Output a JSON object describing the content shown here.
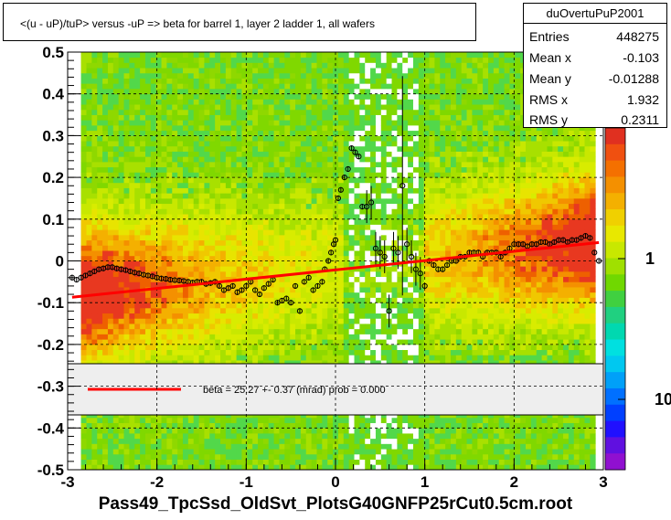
{
  "title": "<(u - uP)/tuP> versus  -uP => beta for barrel 1, layer 2 ladder 1, all wafers",
  "stats": {
    "name": "duOvertuPuP2001",
    "rows": [
      {
        "k": "Entries",
        "v": "448275"
      },
      {
        "k": "Mean x",
        "v": "-0.103"
      },
      {
        "k": "Mean y",
        "v": "-0.01288"
      },
      {
        "k": "RMS x",
        "v": "1.932"
      },
      {
        "k": "RMS y",
        "v": "0.2311"
      }
    ]
  },
  "footer": "Pass49_TpcSsd_OldSvt_PlotsG40GNFP25rCut0.5cm.root",
  "colors": {
    "fit_line": "#ff0000",
    "legend_bg": "#eeeeee"
  },
  "chart_data": {
    "type": "heatmap",
    "xlim": [
      -3,
      3
    ],
    "ylim": [
      -0.5,
      0.5
    ],
    "x_ticks": [
      "-3",
      "-2",
      "-1",
      "0",
      "1",
      "2",
      "3"
    ],
    "y_ticks": [
      "-0.5",
      "-0.4",
      "-0.3",
      "-0.2",
      "-0.1",
      "0",
      "0.1",
      "0.2",
      "0.3",
      "0.4",
      "0.5"
    ],
    "z_ticks": [
      "10",
      "1"
    ],
    "grid": true,
    "fit": {
      "label": "beta =   25.27 +-  0.37 (mrad) prob = 0.000",
      "x": [
        -2.95,
        2.95
      ],
      "y": [
        -0.087,
        0.044
      ]
    },
    "profile": [
      [
        -2.95,
        -0.04
      ],
      [
        -2.9,
        -0.045
      ],
      [
        -2.85,
        -0.04
      ],
      [
        -2.8,
        -0.035
      ],
      [
        -2.75,
        -0.03
      ],
      [
        -2.7,
        -0.025
      ],
      [
        -2.65,
        -0.02
      ],
      [
        -2.6,
        -0.018
      ],
      [
        -2.55,
        -0.015
      ],
      [
        -2.5,
        -0.015
      ],
      [
        -2.45,
        -0.018
      ],
      [
        -2.4,
        -0.02
      ],
      [
        -2.35,
        -0.022
      ],
      [
        -2.3,
        -0.025
      ],
      [
        -2.25,
        -0.028
      ],
      [
        -2.2,
        -0.03
      ],
      [
        -2.15,
        -0.033
      ],
      [
        -2.1,
        -0.035
      ],
      [
        -2.05,
        -0.037
      ],
      [
        -2.0,
        -0.04
      ],
      [
        -1.95,
        -0.042
      ],
      [
        -1.9,
        -0.043
      ],
      [
        -1.85,
        -0.045
      ],
      [
        -1.8,
        -0.046
      ],
      [
        -1.75,
        -0.047
      ],
      [
        -1.7,
        -0.048
      ],
      [
        -1.65,
        -0.05
      ],
      [
        -1.6,
        -0.052
      ],
      [
        -1.55,
        -0.05
      ],
      [
        -1.5,
        -0.05
      ],
      [
        -1.45,
        -0.055
      ],
      [
        -1.4,
        -0.053
      ],
      [
        -1.35,
        -0.05
      ],
      [
        -1.3,
        -0.06
      ],
      [
        -1.25,
        -0.07
      ],
      [
        -1.2,
        -0.065
      ],
      [
        -1.15,
        -0.06
      ],
      [
        -1.1,
        -0.075
      ],
      [
        -1.05,
        -0.07
      ],
      [
        -1.0,
        -0.06
      ],
      [
        -0.95,
        -0.05
      ],
      [
        -0.9,
        -0.07
      ],
      [
        -0.85,
        -0.08
      ],
      [
        -0.8,
        -0.065
      ],
      [
        -0.75,
        -0.055
      ],
      [
        -0.7,
        -0.045
      ],
      [
        -0.65,
        -0.1
      ],
      [
        -0.6,
        -0.095
      ],
      [
        -0.55,
        -0.09
      ],
      [
        -0.5,
        -0.1
      ],
      [
        -0.45,
        -0.06
      ],
      [
        -0.4,
        -0.12
      ],
      [
        -0.35,
        -0.05
      ],
      [
        -0.3,
        -0.04
      ],
      [
        -0.25,
        -0.07
      ],
      [
        -0.2,
        -0.06
      ],
      [
        -0.15,
        -0.05
      ],
      [
        -0.12,
        -0.02
      ],
      [
        -0.08,
        0.0
      ],
      [
        -0.05,
        0.02
      ],
      [
        -0.02,
        0.04
      ],
      [
        0.0,
        0.05
      ],
      [
        0.03,
        0.15
      ],
      [
        0.06,
        0.17
      ],
      [
        0.1,
        0.2
      ],
      [
        0.14,
        0.22
      ],
      [
        0.18,
        0.27
      ],
      [
        0.22,
        0.26
      ],
      [
        0.26,
        0.25
      ],
      [
        0.3,
        0.13
      ],
      [
        0.35,
        0.13
      ],
      [
        0.4,
        0.14
      ],
      [
        0.45,
        0.03
      ],
      [
        0.5,
        0.02
      ],
      [
        0.55,
        0.01
      ],
      [
        0.6,
        -0.12
      ],
      [
        0.65,
        0.03
      ],
      [
        0.7,
        0.02
      ],
      [
        0.75,
        0.18
      ],
      [
        0.8,
        0.04
      ],
      [
        0.85,
        0.01
      ],
      [
        0.9,
        -0.02
      ],
      [
        0.95,
        -0.03
      ],
      [
        1.0,
        -0.06
      ],
      [
        1.05,
        0.0
      ],
      [
        1.1,
        -0.01
      ],
      [
        1.15,
        -0.02
      ],
      [
        1.2,
        -0.02
      ],
      [
        1.25,
        -0.01
      ],
      [
        1.3,
        0.0
      ],
      [
        1.35,
        0.0
      ],
      [
        1.4,
        0.01
      ],
      [
        1.45,
        0.01
      ],
      [
        1.5,
        0.02
      ],
      [
        1.55,
        0.02
      ],
      [
        1.6,
        0.02
      ],
      [
        1.65,
        0.01
      ],
      [
        1.7,
        0.02
      ],
      [
        1.75,
        0.02
      ],
      [
        1.8,
        0.02
      ],
      [
        1.85,
        0.01
      ],
      [
        1.9,
        0.02
      ],
      [
        1.95,
        0.03
      ],
      [
        2.0,
        0.04
      ],
      [
        2.05,
        0.04
      ],
      [
        2.1,
        0.04
      ],
      [
        2.15,
        0.035
      ],
      [
        2.2,
        0.04
      ],
      [
        2.25,
        0.04
      ],
      [
        2.3,
        0.045
      ],
      [
        2.35,
        0.045
      ],
      [
        2.4,
        0.04
      ],
      [
        2.45,
        0.045
      ],
      [
        2.5,
        0.05
      ],
      [
        2.55,
        0.05
      ],
      [
        2.6,
        0.045
      ],
      [
        2.65,
        0.05
      ],
      [
        2.7,
        0.05
      ],
      [
        2.75,
        0.055
      ],
      [
        2.8,
        0.06
      ],
      [
        2.85,
        0.055
      ],
      [
        2.9,
        0.02
      ],
      [
        2.95,
        0.0
      ]
    ]
  }
}
